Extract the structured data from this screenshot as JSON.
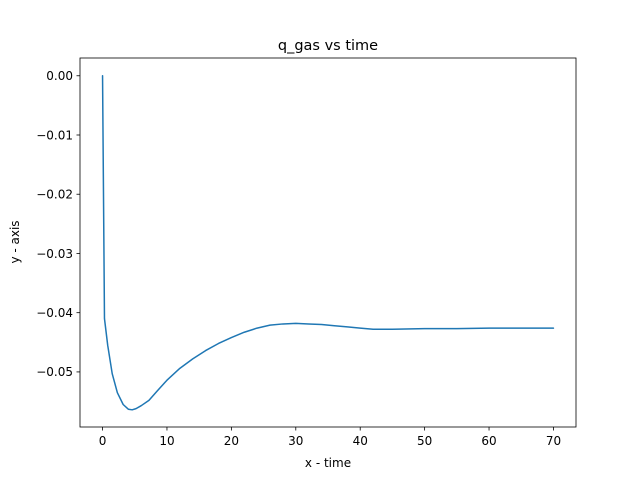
{
  "chart_data": {
    "type": "line",
    "title": "q_gas vs time",
    "xlabel": "x - time",
    "ylabel": "y - axis",
    "xlim": [
      -3.5,
      73.5
    ],
    "ylim": [
      -0.0593,
      0.003
    ],
    "xticks": [
      0,
      10,
      20,
      30,
      40,
      50,
      60,
      70
    ],
    "yticks": [
      -0.05,
      -0.04,
      -0.03,
      -0.02,
      -0.01,
      0.0
    ],
    "xtick_labels": [
      "0",
      "10",
      "20",
      "30",
      "40",
      "50",
      "60",
      "70"
    ],
    "ytick_labels": [
      "−0.05",
      "−0.04",
      "−0.03",
      "−0.02",
      "−0.01",
      "0.00"
    ],
    "grid": false,
    "series": [
      {
        "color": "#1f77b4",
        "x": [
          0,
          0.3,
          0.8,
          1.5,
          2.3,
          3.2,
          4.0,
          4.6,
          5.2,
          6.0,
          7.2,
          8.5,
          10,
          12,
          14,
          16,
          18,
          20,
          22,
          24,
          26,
          28,
          30,
          32,
          34,
          36,
          38,
          40,
          42,
          45,
          50,
          55,
          60,
          65,
          70
        ],
        "y": [
          0.0,
          -0.041,
          -0.0455,
          -0.0503,
          -0.0535,
          -0.0555,
          -0.0563,
          -0.0564,
          -0.0562,
          -0.0557,
          -0.0548,
          -0.0532,
          -0.0514,
          -0.0494,
          -0.0478,
          -0.0464,
          -0.0452,
          -0.0442,
          -0.0433,
          -0.0426,
          -0.0421,
          -0.0419,
          -0.0418,
          -0.0419,
          -0.042,
          -0.0422,
          -0.0424,
          -0.0426,
          -0.0428,
          -0.0428,
          -0.0427,
          -0.0427,
          -0.0426,
          -0.0426,
          -0.0426
        ]
      }
    ]
  }
}
